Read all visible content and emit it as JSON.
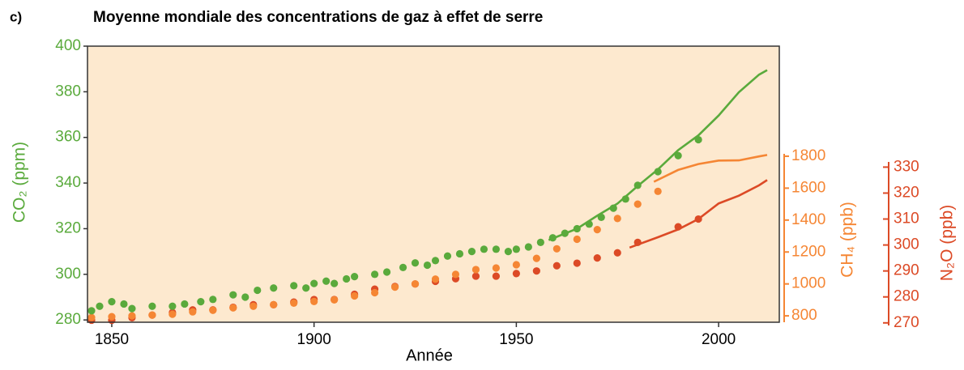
{
  "chart_data": {
    "type": "line",
    "panel": "c)",
    "title": "Moyenne mondiale des concentrations de gaz à effet de serre",
    "xlabel": "Année",
    "ylabel": "CO₂ (ppm)",
    "y2label": "CH₄ (ppb)",
    "y3label": "N₂O (ppb)",
    "xlim": [
      1844,
      2015
    ],
    "xticks": [
      1850,
      1900,
      1950,
      2000
    ],
    "ylim": [
      279,
      400
    ],
    "yticks": [
      280,
      300,
      320,
      340,
      360,
      380,
      400
    ],
    "y2lim": [
      760,
      1815
    ],
    "y2ticks": [
      800,
      1000,
      1200,
      1400,
      1600,
      1800
    ],
    "y3lim": [
      269,
      332
    ],
    "y3ticks": [
      270,
      280,
      290,
      300,
      310,
      320,
      330
    ],
    "background": "#fde9cf",
    "series": [
      {
        "mode": "markers",
        "axis": "y",
        "color": "#5aaa3c",
        "x": [
          1845,
          1847,
          1850,
          1853,
          1855,
          1860,
          1865,
          1868,
          1872,
          1875,
          1880,
          1883,
          1886,
          1890,
          1895,
          1898,
          1900,
          1903,
          1905,
          1908,
          1910,
          1915,
          1918,
          1922,
          1925,
          1928,
          1930,
          1933,
          1936,
          1939,
          1942,
          1945,
          1948,
          1950,
          1953,
          1956,
          1959,
          1962,
          1965,
          1968,
          1971,
          1974,
          1977,
          1980,
          1985,
          1990,
          1995
        ],
        "values": [
          284,
          286,
          288,
          287,
          285,
          286,
          286,
          287,
          288,
          289,
          291,
          290,
          293,
          294,
          295,
          294,
          296,
          297,
          296,
          298,
          299,
          300,
          301,
          303,
          305,
          304,
          306,
          308,
          309,
          310,
          311,
          311,
          310,
          311,
          312,
          314,
          316,
          318,
          320,
          322,
          325,
          329,
          333,
          339,
          345,
          352,
          359
        ]
      },
      {
        "mode": "line",
        "axis": "y",
        "color": "#5aaa3c",
        "x": [
          1958,
          1965,
          1970,
          1975,
          1980,
          1985,
          1990,
          1995,
          2000,
          2005,
          2010,
          2012
        ],
        "values": [
          315,
          320,
          325.7,
          331,
          338.7,
          346,
          354.4,
          360.9,
          369.6,
          379.8,
          387.5,
          389.5
        ]
      },
      {
        "mode": "markers",
        "axis": "y2",
        "color": "#f58634",
        "x": [
          1845,
          1850,
          1855,
          1860,
          1865,
          1870,
          1875,
          1880,
          1885,
          1890,
          1895,
          1900,
          1905,
          1910,
          1915,
          1920,
          1925,
          1930,
          1935,
          1940,
          1945,
          1950,
          1955,
          1960,
          1965,
          1970,
          1975,
          1980,
          1985
        ],
        "values": [
          790,
          795,
          800,
          805,
          810,
          825,
          835,
          850,
          860,
          870,
          880,
          890,
          900,
          925,
          945,
          980,
          1000,
          1030,
          1060,
          1090,
          1100,
          1120,
          1160,
          1220,
          1280,
          1340,
          1410,
          1500,
          1580
        ]
      },
      {
        "mode": "line",
        "axis": "y2",
        "color": "#f58634",
        "x": [
          1984,
          1990,
          1995,
          2000,
          2005,
          2010,
          2012
        ],
        "values": [
          1640,
          1714,
          1751,
          1773,
          1774,
          1799,
          1808
        ]
      },
      {
        "mode": "markers",
        "axis": "y3",
        "color": "#dc4a26",
        "x": [
          1845,
          1850,
          1855,
          1860,
          1865,
          1870,
          1875,
          1880,
          1885,
          1890,
          1895,
          1900,
          1905,
          1910,
          1915,
          1920,
          1925,
          1930,
          1935,
          1940,
          1945,
          1950,
          1955,
          1960,
          1965,
          1970,
          1975,
          1980,
          1990,
          1995
        ],
        "values": [
          271,
          271,
          272,
          273,
          274,
          275,
          275,
          276,
          277,
          277,
          278,
          279,
          279,
          281,
          283,
          284,
          285,
          286,
          287,
          288,
          288,
          289,
          290,
          292,
          293,
          295,
          297,
          301,
          307,
          310
        ]
      },
      {
        "mode": "line",
        "axis": "y3",
        "color": "#dc4a26",
        "x": [
          1978,
          1985,
          1990,
          1995,
          2000,
          2005,
          2010,
          2012
        ],
        "values": [
          299,
          303,
          306,
          310,
          316,
          319,
          323,
          325
        ]
      }
    ]
  }
}
